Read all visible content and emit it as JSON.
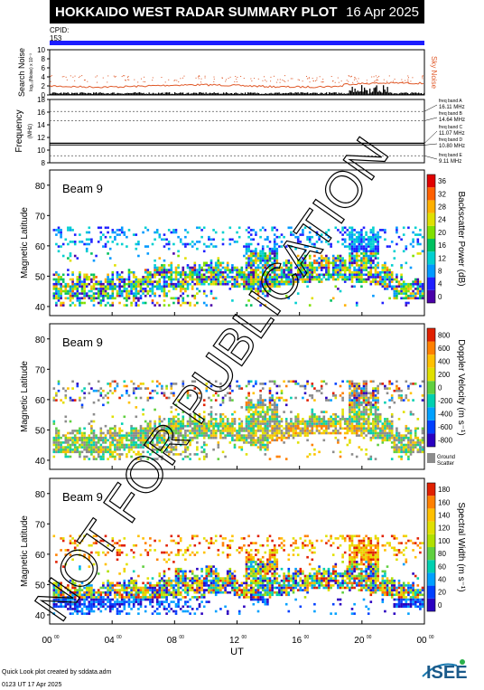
{
  "header": {
    "title": "HOKKAIDO WEST RADAR SUMMARY PLOT",
    "date": "16 Apr 2025"
  },
  "cpid": {
    "label": "CPID:",
    "value": "153"
  },
  "noise_panel": {
    "ylabel": "Search Noise",
    "yunit": "log₁₀(Noise) x 10⁻³",
    "ticks": [
      "10",
      "8",
      "6",
      "4",
      "2",
      "0"
    ],
    "right_label": "Sky Noise",
    "sky_color": "#e05a2a"
  },
  "freq_panel": {
    "ylabel": "Frequency",
    "yunit": "(MHz)",
    "ticks": [
      "18",
      "16",
      "14",
      "12",
      "10",
      "8"
    ],
    "bands": [
      {
        "label": "freq band A",
        "value": "16.11 MHz"
      },
      {
        "label": "freq band B",
        "value": "14.64 MHz"
      },
      {
        "label": "freq band C",
        "value": "11.07 MHz"
      },
      {
        "label": "freq band D",
        "value": "10.80 MHz"
      },
      {
        "label": "freq band E",
        "value": "9.11 MHz"
      }
    ]
  },
  "chart_data": [
    {
      "type": "heatmap",
      "beam_label": "Beam  9",
      "ylabel": "Magnetic Latitude",
      "yticks": [
        "80",
        "70",
        "60",
        "50",
        "40"
      ],
      "ylim": [
        37,
        85
      ],
      "colorbar_label": "Backscatter Power (dB)",
      "colorbar_ticks": [
        "36",
        "32",
        "28",
        "24",
        "20",
        "16",
        "12",
        "8",
        "4",
        "0"
      ],
      "colorscale": [
        "#4a00a8",
        "#1f1fff",
        "#0099ff",
        "#00d0d0",
        "#00c060",
        "#80e000",
        "#e0e000",
        "#ffb000",
        "#ff6000",
        "#e00000"
      ]
    },
    {
      "type": "heatmap",
      "beam_label": "Beam  9",
      "ylabel": "Magnetic Latitude",
      "yticks": [
        "80",
        "70",
        "60",
        "50",
        "40"
      ],
      "ylim": [
        37,
        85
      ],
      "colorbar_label": "Doppler Velocity (m s⁻¹)",
      "colorbar_ticks": [
        "800",
        "600",
        "400",
        "200",
        "0",
        "-200",
        "-400",
        "-600",
        "-800"
      ],
      "colorscale": [
        "#2a00c0",
        "#0040ff",
        "#00a0ff",
        "#00d0b0",
        "#60d040",
        "#e0e000",
        "#ffc000",
        "#ff8000",
        "#e02000"
      ],
      "ground_scatter_label": "Ground Scatter"
    },
    {
      "type": "heatmap",
      "beam_label": "Beam  9",
      "ylabel": "Magnetic Latitude",
      "yticks": [
        "80",
        "70",
        "60",
        "50",
        "40"
      ],
      "ylim": [
        37,
        85
      ],
      "colorbar_label": "Spectral Width (m s⁻¹)",
      "colorbar_ticks": [
        "180",
        "160",
        "140",
        "120",
        "100",
        "80",
        "60",
        "40",
        "20",
        "0"
      ],
      "colorscale": [
        "#2a00c0",
        "#0040ff",
        "#00a0ff",
        "#00d0b0",
        "#60d040",
        "#b0e000",
        "#e0e000",
        "#ffc000",
        "#ff8000",
        "#e02000"
      ]
    }
  ],
  "xaxis": {
    "ticks": [
      "00",
      "04",
      "08",
      "12",
      "16",
      "20",
      "00"
    ],
    "minor": "00",
    "label": "UT"
  },
  "footer": {
    "line1": "Quick Look plot created by sddata.adm",
    "line2": "0123 UT 17 Apr 2025"
  },
  "logo": {
    "text": "ISEE"
  },
  "watermark": "NOT FOR PUBLICATION"
}
